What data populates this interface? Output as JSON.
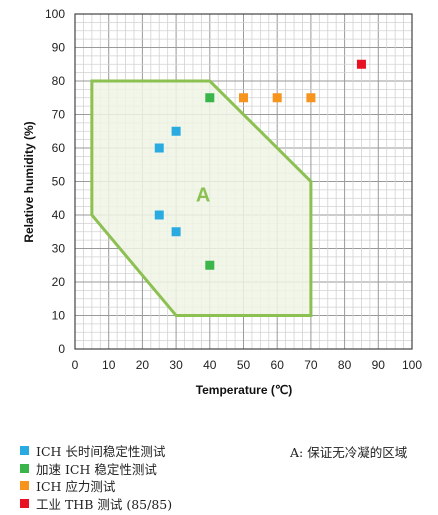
{
  "chart_data": {
    "type": "scatter",
    "xlabel": "Temperature (℃)",
    "ylabel": "Relative humidity (%)",
    "xlim": [
      0,
      100
    ],
    "ylim": [
      0,
      100
    ],
    "xticks": [
      "0",
      "10",
      "20",
      "30",
      "40",
      "50",
      "60",
      "70",
      "80",
      "90",
      "100"
    ],
    "yticks": [
      "0",
      "10",
      "20",
      "30",
      "40",
      "50",
      "60",
      "70",
      "80",
      "90",
      "100"
    ],
    "grid": true,
    "region": {
      "label": "A",
      "color": "#8cc152",
      "fill": "#eef4e4",
      "polygon": [
        [
          5,
          80
        ],
        [
          40,
          80
        ],
        [
          70,
          50
        ],
        [
          70,
          10
        ],
        [
          30,
          10
        ],
        [
          5,
          40
        ]
      ]
    },
    "series": [
      {
        "name": "ICH 长时间稳定性测试",
        "color": "#29abe2",
        "points": [
          [
            25,
            60
          ],
          [
            30,
            65
          ],
          [
            25,
            40
          ],
          [
            30,
            35
          ]
        ]
      },
      {
        "name": "加速 ICH 稳定性测试",
        "color": "#39b54a",
        "points": [
          [
            40,
            75
          ],
          [
            40,
            25
          ]
        ]
      },
      {
        "name": "ICH 应力测试",
        "color": "#f7941d",
        "points": [
          [
            50,
            75
          ],
          [
            60,
            75
          ],
          [
            70,
            75
          ]
        ]
      },
      {
        "name": "工业 THB 测试 (85/85)",
        "color": "#e81123",
        "points": [
          [
            85,
            85
          ]
        ]
      }
    ],
    "annotation": "A: 保证无冷凝的区域",
    "legend": "bottom-left"
  }
}
